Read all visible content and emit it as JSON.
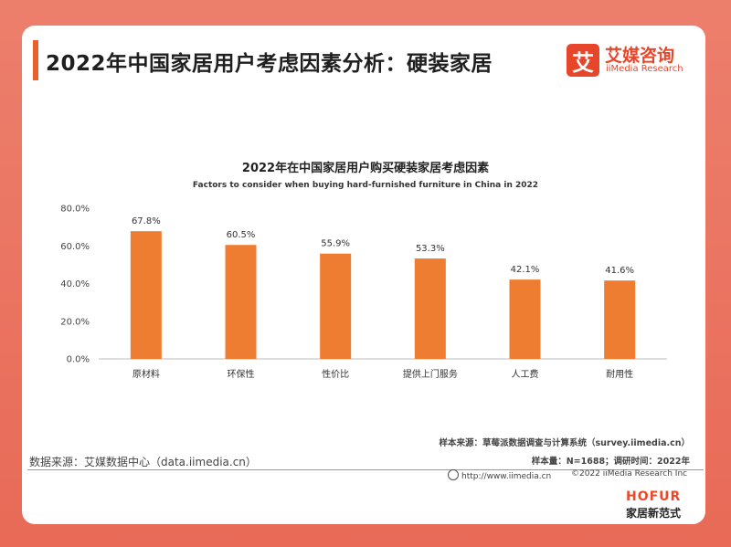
{
  "page": {
    "title": "2022年中国家居用户考虑因素分析：硬装家居",
    "logo_mark": "艾",
    "logo_cn": "艾媒咨询",
    "logo_en": "iiMedia Research"
  },
  "chart_data": {
    "type": "bar",
    "title": "2022年在中国家居用户购买硬装家居考虑因素",
    "subtitle": "Factors to consider when buying hard-furnished furniture in China in 2022",
    "categories": [
      "原材料",
      "环保性",
      "性价比",
      "提供上门服务",
      "人工费",
      "耐用性"
    ],
    "values": [
      67.8,
      60.5,
      55.9,
      53.3,
      42.1,
      41.6
    ],
    "value_labels": [
      "67.8%",
      "60.5%",
      "55.9%",
      "53.3%",
      "42.1%",
      "41.6%"
    ],
    "ylim": [
      0,
      80
    ],
    "yticks": [
      0,
      20,
      40,
      60,
      80
    ],
    "ytick_labels": [
      "0.0%",
      "20.0%",
      "40.0%",
      "60.0%",
      "80.0%"
    ],
    "bar_color": "#ee7d31",
    "grid": false,
    "legend": "none",
    "xlabel": "",
    "ylabel": ""
  },
  "footer": {
    "sample_source": "样本来源：草莓派数据调查与计算系统（survey.iimedia.cn）",
    "sample_size": "样本量：N=1688；调研时间：2022年",
    "data_source": "数据来源：艾媒数据中心（data.iimedia.cn）",
    "site_url": "http://www.iimedia.cn",
    "copyright": "©2022 iiMedia Research Inc"
  },
  "brand": {
    "en": "HOFUR",
    "cn": "家居新范式"
  }
}
